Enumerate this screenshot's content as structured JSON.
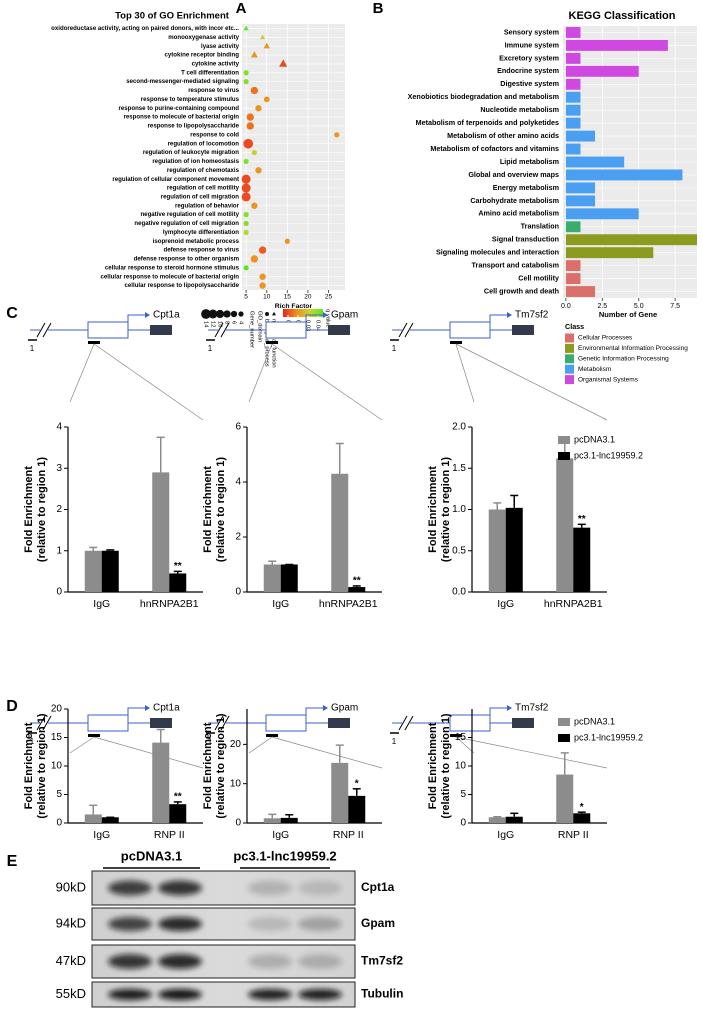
{
  "chart_data": [
    {
      "type": "scatter",
      "panel": "A",
      "title": "Top 30 of GO Enrichment",
      "xlabel": "Rich Factor",
      "categories": [
        "oxidoreductase activity, acting on paired donors, with incor etc...",
        "monooxygenase activity",
        "lyase activity",
        "cytokine receptor binding",
        "cytokine activity",
        "T cell differentiation",
        "second-messenger-mediated signaling",
        "response to virus",
        "response to temperature stimulus",
        "response to purine-containing compound",
        "response to molecule of bacterial origin",
        "response to lipopolysaccharide",
        "response to cold",
        "regulation of locomotion",
        "regulation of leukocyte migration",
        "regulation of ion homeostasis",
        "regulation of chemotaxis",
        "regulation of cellular component movement",
        "regulation of cell motility",
        "regulation of cell migration",
        "regulation of behavior",
        "negative regulation of cell motility",
        "negative regulation of cell migration",
        "lymphocyte differentiation",
        "isoprenoid metabolic process",
        "defense response to virus",
        "defense response to other organism",
        "cellular response to steroid hormone stimulus",
        "cellular response to molecule of bacterial origin",
        "cellular response to lipopolysaccharide"
      ],
      "values": [
        5,
        9,
        10,
        7,
        14,
        5,
        5,
        7,
        10,
        8,
        6,
        6,
        27,
        5.5,
        7,
        5,
        8,
        5,
        5,
        5,
        7,
        5,
        5,
        5,
        15,
        9,
        7,
        5,
        9,
        9
      ],
      "sizes": [
        4,
        4,
        6,
        7,
        10,
        4,
        4,
        8,
        5,
        6,
        8,
        8,
        4,
        14,
        4,
        4,
        6,
        12,
        12,
        12,
        6,
        4,
        4,
        4,
        4,
        8,
        8,
        4,
        6,
        6
      ],
      "qvalues": [
        0.045,
        0.03,
        0.02,
        0.02,
        0.01,
        0.04,
        0.04,
        0.015,
        0.02,
        0.02,
        0.015,
        0.015,
        0.02,
        0.01,
        0.03,
        0.04,
        0.02,
        0.01,
        0.01,
        0.01,
        0.02,
        0.04,
        0.04,
        0.035,
        0.02,
        0.012,
        0.02,
        0.045,
        0.02,
        0.02
      ],
      "domains": [
        "molecular_function",
        "molecular_function",
        "molecular_function",
        "molecular_function",
        "molecular_function",
        "biological_process",
        "biological_process",
        "biological_process",
        "biological_process",
        "biological_process",
        "biological_process",
        "biological_process",
        "biological_process",
        "biological_process",
        "biological_process",
        "biological_process",
        "biological_process",
        "biological_process",
        "biological_process",
        "biological_process",
        "biological_process",
        "biological_process",
        "biological_process",
        "biological_process",
        "biological_process",
        "biological_process",
        "biological_process",
        "biological_process",
        "biological_process",
        "biological_process"
      ],
      "xlim": [
        4,
        29
      ],
      "xticks": [
        5,
        10,
        15,
        20,
        25
      ],
      "grid": true,
      "size_legend": {
        "title": "Gene_number",
        "values": [
          14,
          12,
          10,
          8,
          6,
          4
        ]
      },
      "domain_legend": {
        "title": "GO_domain",
        "labels": [
          "biological_process",
          "molecular_function"
        ]
      },
      "color_legend": {
        "title": "q value",
        "ticks": [
          0.01,
          0.02,
          0.03,
          0.04
        ],
        "lim": [
          0.005,
          0.045
        ],
        "colors": [
          "#e8261f",
          "#f08c1e",
          "#c8d630",
          "#5ce61e"
        ]
      }
    },
    {
      "type": "bar",
      "orientation": "horizontal",
      "panel": "B",
      "title": "KEGG Classification",
      "xlabel": "Number of Gene",
      "categories": [
        "Sensory system",
        "Immune system",
        "Excretory system",
        "Endocrine system",
        "Digestive system",
        "Xenobiotics biodegradation and metabolism",
        "Nucleotide metabolism",
        "Metabolism of terpenoids and polyketides",
        "Metabolism of other amino acids",
        "Metabolism of cofactors and vitamins",
        "Lipid metabolism",
        "Global and overview maps",
        "Energy metabolism",
        "Carbohydrate metabolism",
        "Amino acid metabolism",
        "Translation",
        "Signal transduction",
        "Signaling molecules and interaction",
        "Transport and catabolism",
        "Cell motility",
        "Cell growth and death"
      ],
      "values": [
        1,
        7,
        1,
        5,
        1,
        1,
        1,
        1,
        2,
        1,
        4,
        8,
        2,
        2,
        5,
        1,
        9,
        6,
        1,
        1,
        2
      ],
      "category_class": [
        "Organismal Systems",
        "Organismal Systems",
        "Organismal Systems",
        "Organismal Systems",
        "Organismal Systems",
        "Metabolism",
        "Metabolism",
        "Metabolism",
        "Metabolism",
        "Metabolism",
        "Metabolism",
        "Metabolism",
        "Metabolism",
        "Metabolism",
        "Metabolism",
        "Genetic Information Processing",
        "Environmental Information Processing",
        "Environmental Information Processing",
        "Cellular Processes",
        "Cellular Processes",
        "Cellular Processes"
      ],
      "legend_title": "Class",
      "classes": [
        {
          "name": "Cellular Processes",
          "color": "#dc6f6a"
        },
        {
          "name": "Environmental Information Processing",
          "color": "#8c9a1f"
        },
        {
          "name": "Genetic Information Processing",
          "color": "#3aac6e"
        },
        {
          "name": "Metabolism",
          "color": "#4b9ff0"
        },
        {
          "name": "Organismal Systems",
          "color": "#cf48e0"
        }
      ],
      "xlim": [
        -0.2,
        9.0
      ],
      "xticks": [
        {
          "value": 0,
          "label": "0.0"
        },
        2.5,
        {
          "value": 5,
          "label": "5.0"
        },
        7.5
      ],
      "grid": true
    },
    {
      "type": "bar",
      "panel": "C",
      "gene": "Cpt1a",
      "region": "1",
      "ylabel": [
        "Fold Enrichment",
        "(relative to region 1)"
      ],
      "categories": [
        "IgG",
        "hnRNPA2B1"
      ],
      "series": [
        {
          "color": "#8c8c8c",
          "values": [
            1.0,
            2.9
          ],
          "errors": [
            0.08,
            0.85
          ]
        },
        {
          "color": "#000000",
          "values": [
            1.0,
            0.45
          ],
          "errors": [
            0.02,
            0.05
          ],
          "significance": [
            null,
            "**"
          ]
        }
      ],
      "ylim": [
        0,
        4
      ],
      "yticks": [
        0,
        1,
        2,
        3,
        4
      ]
    },
    {
      "type": "bar",
      "gene": "Gpam",
      "region": "1",
      "ylabel": [
        "Fold Enrichment",
        "(relative to region 1)"
      ],
      "categories": [
        "IgG",
        "hnRNPA2B1"
      ],
      "series": [
        {
          "color": "#8c8c8c",
          "values": [
            1.0,
            4.3
          ],
          "errors": [
            0.12,
            1.1
          ]
        },
        {
          "color": "#000000",
          "values": [
            1.0,
            0.18
          ],
          "errors": [
            0.0,
            0.04
          ],
          "significance": [
            null,
            "**"
          ]
        }
      ],
      "ylim": [
        0,
        6
      ],
      "yticks": [
        0,
        2,
        4,
        6
      ]
    },
    {
      "type": "bar",
      "gene": "Tm7sf2",
      "region": "1",
      "ylabel": [
        "Fold Enrichment",
        "(relative to region 1)"
      ],
      "categories": [
        "IgG",
        "hnRNPA2B1"
      ],
      "series": [
        {
          "name": "pcDNA3.1",
          "color": "#8c8c8c",
          "values": [
            1.0,
            1.62
          ],
          "errors": [
            0.08,
            0.2
          ]
        },
        {
          "name": "pc3.1-lnc19959.2",
          "color": "#000000",
          "values": [
            1.02,
            0.78
          ],
          "errors": [
            0.15,
            0.04
          ],
          "significance": [
            null,
            "**"
          ]
        }
      ],
      "ylim": [
        0,
        2
      ],
      "yticks": [
        {
          "value": 0,
          "label": "0.0"
        },
        0.5,
        {
          "value": 1,
          "label": "1.0"
        },
        1.5,
        {
          "value": 2,
          "label": "2.0"
        }
      ],
      "legend": true
    },
    {
      "type": "bar",
      "panel": "D",
      "gene": "Cpt1a",
      "region": "1",
      "ylabel": [
        "Fold Enrichment",
        "(relative to region 1)"
      ],
      "categories": [
        "IgG",
        "RNP II"
      ],
      "series": [
        {
          "color": "#8c8c8c",
          "values": [
            1.5,
            14.1
          ],
          "errors": [
            1.6,
            2.3
          ]
        },
        {
          "color": "#000000",
          "values": [
            1.0,
            3.3
          ],
          "errors": [
            0.0,
            0.4
          ],
          "significance": [
            null,
            "**"
          ]
        }
      ],
      "ylim": [
        0,
        20
      ],
      "yticks": [
        0,
        5,
        10,
        15,
        20
      ]
    },
    {
      "type": "bar",
      "gene": "Gpam",
      "region": "1",
      "ylabel": [
        "Fold Enrichment",
        "(relative to region 1)"
      ],
      "categories": [
        "IgG",
        "RNP II"
      ],
      "series": [
        {
          "color": "#8c8c8c",
          "values": [
            1.2,
            15.3
          ],
          "errors": [
            1.0,
            4.5
          ]
        },
        {
          "color": "#000000",
          "values": [
            1.3,
            6.9
          ],
          "errors": [
            0.8,
            1.8
          ],
          "significance": [
            null,
            "*"
          ]
        }
      ],
      "ylim": [
        0,
        29
      ],
      "yticks": [
        0,
        10,
        20
      ]
    },
    {
      "type": "bar",
      "gene": "Tm7sf2",
      "region": "1",
      "ylabel": [
        "Fold Enrichment",
        "(relative to region 1)"
      ],
      "categories": [
        "IgG",
        "RNP II"
      ],
      "series": [
        {
          "name": "pcDNA3.1",
          "color": "#8c8c8c",
          "values": [
            1.0,
            8.5
          ],
          "errors": [
            0.1,
            3.8
          ]
        },
        {
          "name": "pc3.1-lnc19959.2",
          "color": "#000000",
          "values": [
            1.1,
            1.7
          ],
          "errors": [
            0.6,
            0.2
          ],
          "significance": [
            null,
            "*"
          ]
        }
      ],
      "ylim": [
        0,
        20
      ],
      "yticks": [
        0,
        5,
        10,
        15
      ],
      "legend": true
    }
  ],
  "blot": {
    "panel": "E",
    "groups": [
      "pcDNA3.1",
      "pc3.1-lnc19959.2"
    ],
    "rows": [
      {
        "size": "90kD",
        "protein": "Cpt1a"
      },
      {
        "size": "94kD",
        "protein": "Gpam"
      },
      {
        "size": "47kD",
        "protein": "Tm7sf2"
      },
      {
        "size": "55kD",
        "protein": "Tubulin"
      }
    ]
  }
}
